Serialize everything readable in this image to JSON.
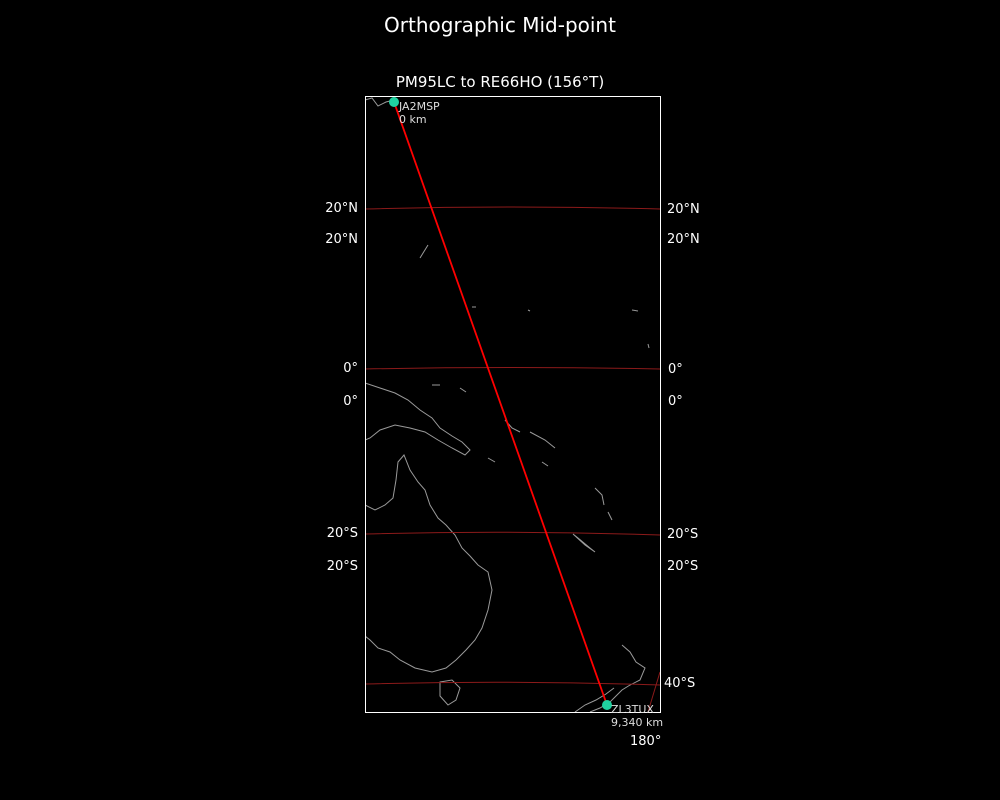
{
  "title": "Orthographic Mid-point",
  "subtitle": "PM95LC to RE66HO (156°T)",
  "colors": {
    "background": "#000000",
    "path": "#ff0000",
    "gridlines": "#8b1a1a",
    "coastline": "#9a9a9a",
    "markers": "#1fd1a0",
    "frame": "#ffffff"
  },
  "gridlabels_left": [
    "20°N",
    "20°N",
    "0°",
    "0°",
    "20°S",
    "20°S"
  ],
  "gridlabels_right": [
    "20°N",
    "20°N",
    "0°",
    "0°",
    "20°S",
    "20°S",
    "40°S",
    "180°"
  ],
  "start": {
    "call": "JA2MSP",
    "distance": "0 km"
  },
  "end": {
    "call": "ZL3TUX",
    "distance": "9,340 km"
  }
}
